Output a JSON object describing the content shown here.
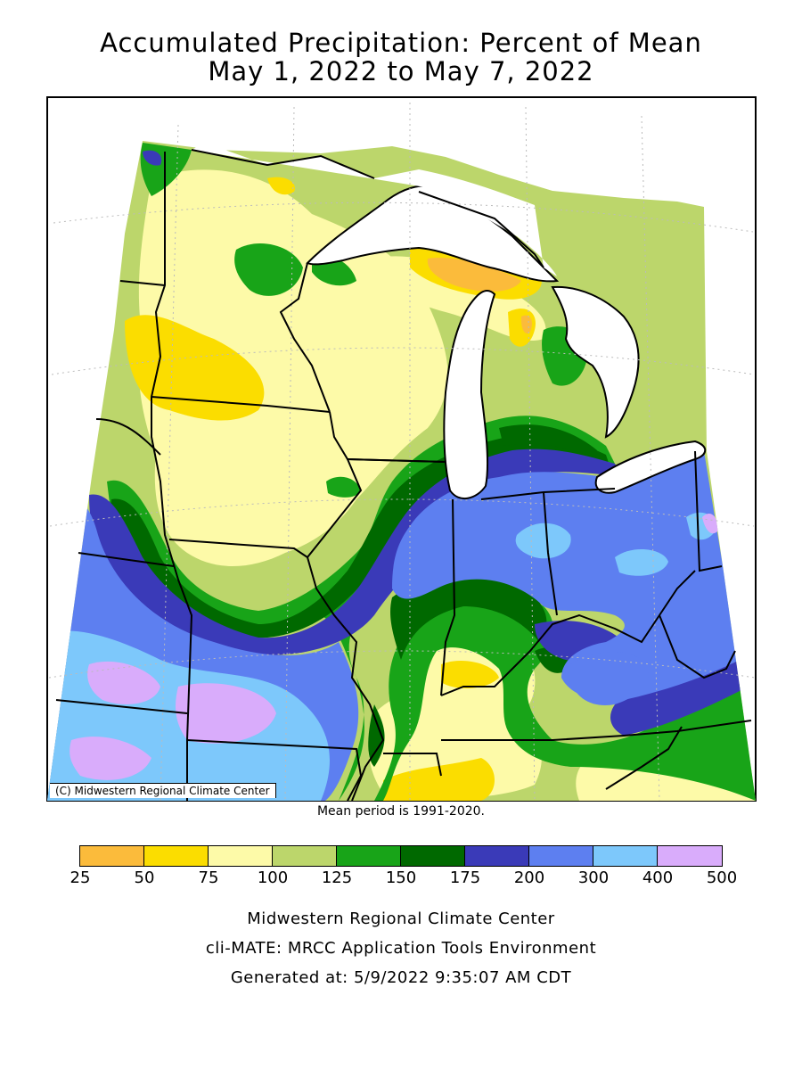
{
  "title_line1": "Accumulated Precipitation: Percent of Mean",
  "title_line2": "May 1, 2022 to May 7, 2022",
  "copyright": "(C) Midwestern Regional Climate Center",
  "mean_period": "Mean period is 1991-2020.",
  "legend": {
    "ticks": [
      "25",
      "50",
      "75",
      "100",
      "125",
      "150",
      "175",
      "200",
      "300",
      "400",
      "500"
    ],
    "colors": [
      "#fbbb3b",
      "#fbdd00",
      "#fdfaa8",
      "#bcd66b",
      "#18a418",
      "#006900",
      "#3a3ab8",
      "#5d7ff0",
      "#7dc8fb",
      "#d9acfb"
    ]
  },
  "colors": {
    "water": "#ffffff",
    "border": "#000000",
    "grid": "#bbbbbb"
  },
  "footer": {
    "line1": "Midwestern Regional Climate Center",
    "line2": "cli-MATE: MRCC Application Tools Environment",
    "line3": "Generated at: 5/9/2022 9:35:07 AM CDT"
  }
}
